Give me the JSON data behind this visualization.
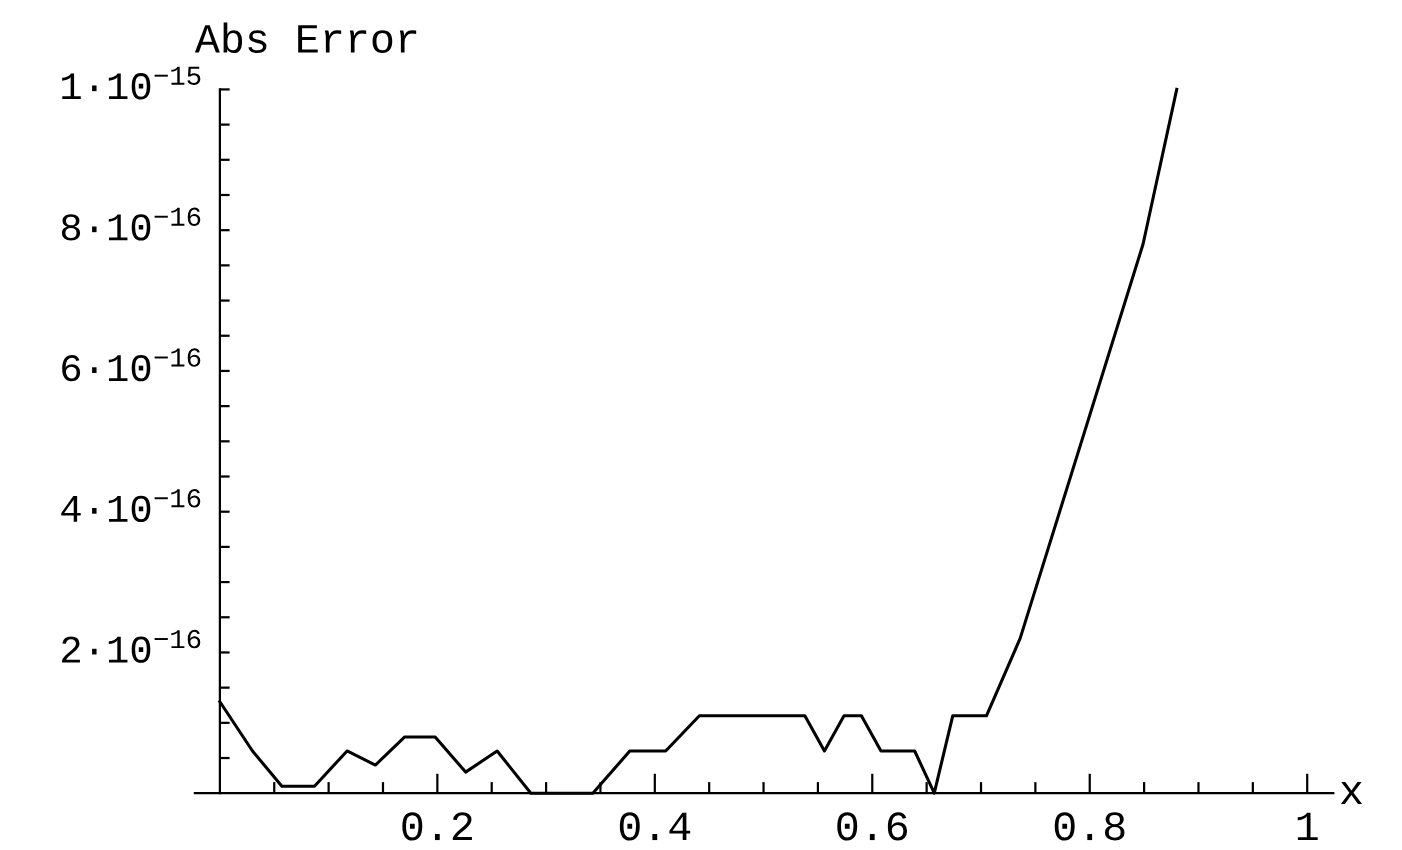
{
  "chart_data": {
    "type": "line",
    "xlabel": "x",
    "ylabel": "Abs Error",
    "x": [
      0,
      0.03,
      0.057,
      0.087,
      0.117,
      0.143,
      0.17,
      0.198,
      0.226,
      0.255,
      0.286,
      0.343,
      0.377,
      0.41,
      0.441,
      0.538,
      0.556,
      0.574,
      0.59,
      0.608,
      0.639,
      0.657,
      0.674,
      0.705,
      0.736,
      0.849,
      0.88
    ],
    "series": [
      {
        "color": "#000000",
        "values": [
          1.3e-16,
          6e-17,
          1e-17,
          1e-17,
          6e-17,
          4e-17,
          8e-17,
          8e-17,
          3e-17,
          6e-17,
          0,
          0,
          6e-17,
          6e-17,
          1.1e-16,
          1.1e-16,
          6e-17,
          1.1e-16,
          1.1e-16,
          6e-17,
          6e-17,
          0,
          1.1e-16,
          1.1e-16,
          2.2e-16,
          7.8e-16,
          1e-15
        ]
      }
    ],
    "xlim": [
      -0.023,
      1.024
    ],
    "ylim": [
      0,
      1e-15
    ],
    "xticks": [
      {
        "value": 0.05,
        "label": null
      },
      {
        "value": 0.1,
        "label": null
      },
      {
        "value": 0.15,
        "label": null
      },
      {
        "value": 0.2,
        "label": "0.2"
      },
      {
        "value": 0.25,
        "label": null
      },
      {
        "value": 0.3,
        "label": null
      },
      {
        "value": 0.35,
        "label": null
      },
      {
        "value": 0.4,
        "label": "0.4"
      },
      {
        "value": 0.45,
        "label": null
      },
      {
        "value": 0.5,
        "label": null
      },
      {
        "value": 0.55,
        "label": null
      },
      {
        "value": 0.6,
        "label": "0.6"
      },
      {
        "value": 0.65,
        "label": null
      },
      {
        "value": 0.7,
        "label": null
      },
      {
        "value": 0.75,
        "label": null
      },
      {
        "value": 0.8,
        "label": "0.8"
      },
      {
        "value": 0.85,
        "label": null
      },
      {
        "value": 0.9,
        "label": null
      },
      {
        "value": 0.95,
        "label": null
      },
      {
        "value": 1,
        "label": "1"
      }
    ],
    "yticks": [
      {
        "value": 5e-17,
        "label": null
      },
      {
        "value": 1e-16,
        "label": null
      },
      {
        "value": 1.5e-16,
        "label": null
      },
      {
        "value": 2e-16,
        "label": "2·10$^{−16}$"
      },
      {
        "value": 2.5e-16,
        "label": null
      },
      {
        "value": 3e-16,
        "label": null
      },
      {
        "value": 3.5e-16,
        "label": null
      },
      {
        "value": 4e-16,
        "label": "4·10$^{−16}$"
      },
      {
        "value": 4.5e-16,
        "label": null
      },
      {
        "value": 5e-16,
        "label": null
      },
      {
        "value": 5.5e-16,
        "label": null
      },
      {
        "value": 6e-16,
        "label": "6·10$^{−16}$"
      },
      {
        "value": 6.5e-16,
        "label": null
      },
      {
        "value": 7e-16,
        "label": null
      },
      {
        "value": 7.5e-16,
        "label": null
      },
      {
        "value": 8e-16,
        "label": "8·10$^{−16}$"
      },
      {
        "value": 8.5e-16,
        "label": null
      },
      {
        "value": 9e-16,
        "label": null
      },
      {
        "value": 9.5e-16,
        "label": null
      },
      {
        "value": 1e-15,
        "label": "1·10$^{−15}$"
      }
    ],
    "grid": false,
    "marker": "none",
    "line_style": "solid"
  }
}
